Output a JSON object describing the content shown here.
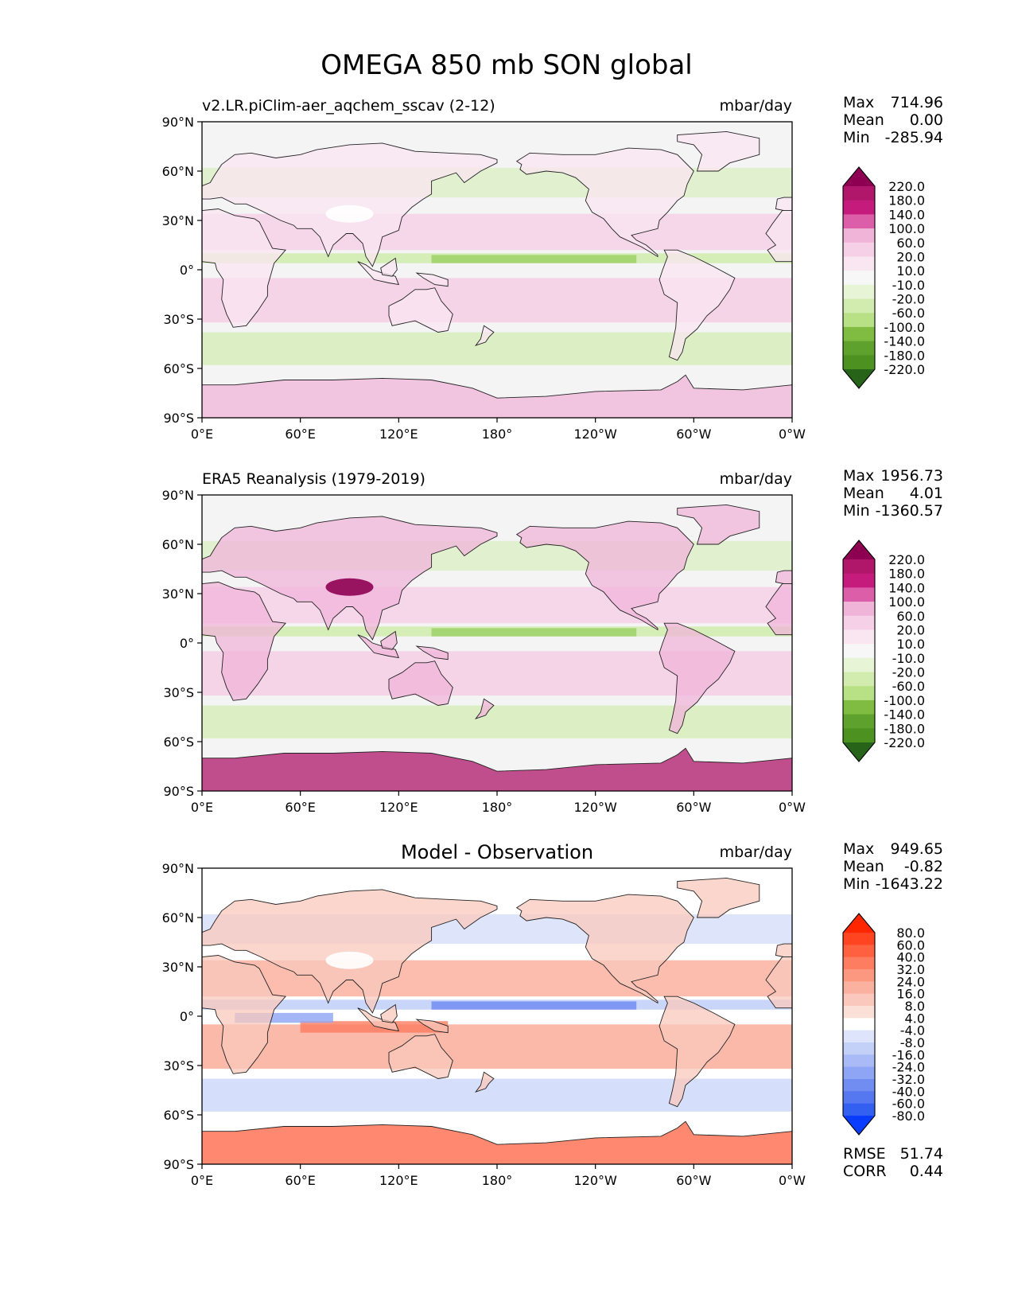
{
  "title": "OMEGA 850 mb SON global",
  "lat_ticks": [
    "90°N",
    "60°N",
    "30°N",
    "0°",
    "30°S",
    "60°S",
    "90°S"
  ],
  "lon_ticks": [
    "0°E",
    "60°E",
    "120°E",
    "180°",
    "120°W",
    "60°W",
    "0°W"
  ],
  "colors": {
    "ocean_neutral": "#f4f4f4",
    "coast": "#222222",
    "seq_levels": [
      "#8e0152",
      "#b0176a",
      "#c51b7d",
      "#dc5ea9",
      "#e588bf",
      "#f0b4d9",
      "#f6d0e6",
      "#fae6f1",
      "#f7f7f7",
      "#e8f4d6",
      "#d2ecaf",
      "#b8e186",
      "#9dd169",
      "#7fbc41",
      "#5ea12c",
      "#4d9221",
      "#276419"
    ],
    "diff_levels": [
      "#ff2600",
      "#ff4422",
      "#fe6040",
      "#fd7d60",
      "#fc9880",
      "#fbb1a0",
      "#fac8bc",
      "#fbe0d8",
      "#ffffff",
      "#dde4fb",
      "#c3d0f8",
      "#a9baf6",
      "#8ea4f4",
      "#728df2",
      "#5577f0",
      "#3360f0",
      "#0a3cff"
    ]
  },
  "panels": [
    {
      "left_title": "v2.LR.piClim-aer_aqchem_sscav (2-12)",
      "center_title": "",
      "units": "mbar/day",
      "stats": [
        {
          "label": "Max",
          "value": "714.96"
        },
        {
          "label": "Mean",
          "value": "0.00"
        },
        {
          "label": "Min",
          "value": "-285.94"
        }
      ],
      "colorbar": {
        "scheme": "seq",
        "labels": [
          "220.0",
          "180.0",
          "140.0",
          "100.0",
          "60.0",
          "20.0",
          "10.0",
          "-10.0",
          "-20.0",
          "-60.0",
          "-100.0",
          "-140.0",
          "-180.0",
          "-220.0"
        ]
      },
      "extra_stats": []
    },
    {
      "left_title": "ERA5 Reanalysis (1979-2019)",
      "center_title": "",
      "units": "mbar/day",
      "stats": [
        {
          "label": "Max",
          "value": "1956.73"
        },
        {
          "label": "Mean",
          "value": "4.01"
        },
        {
          "label": "Min",
          "value": "-1360.57"
        }
      ],
      "colorbar": {
        "scheme": "seq",
        "labels": [
          "220.0",
          "180.0",
          "140.0",
          "100.0",
          "60.0",
          "20.0",
          "10.0",
          "-10.0",
          "-20.0",
          "-60.0",
          "-100.0",
          "-140.0",
          "-180.0",
          "-220.0"
        ]
      },
      "extra_stats": []
    },
    {
      "left_title": "",
      "center_title": "Model - Observation",
      "units": "mbar/day",
      "stats": [
        {
          "label": "Max",
          "value": "949.65"
        },
        {
          "label": "Mean",
          "value": "-0.82"
        },
        {
          "label": "Min",
          "value": "-1643.22"
        }
      ],
      "colorbar": {
        "scheme": "diff",
        "labels": [
          "80.0",
          "60.0",
          "40.0",
          "32.0",
          "24.0",
          "16.0",
          "8.0",
          "4.0",
          "-4.0",
          "-8.0",
          "-16.0",
          "-24.0",
          "-32.0",
          "-40.0",
          "-60.0",
          "-80.0"
        ]
      },
      "extra_stats": [
        {
          "label": "RMSE",
          "value": "51.74"
        },
        {
          "label": "CORR",
          "value": "0.44"
        }
      ]
    }
  ]
}
